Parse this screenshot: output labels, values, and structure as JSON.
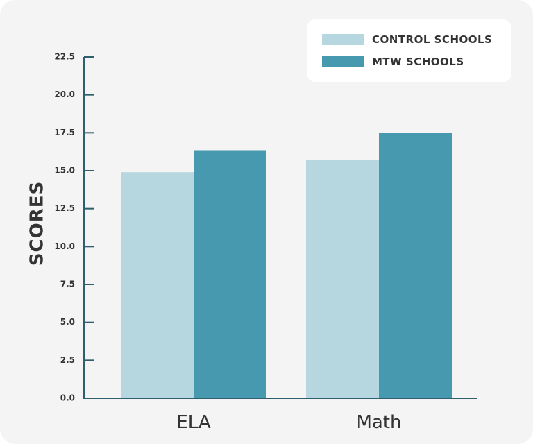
{
  "chart_data": {
    "type": "bar",
    "categories": [
      "ELA",
      "Math"
    ],
    "series": [
      {
        "name": "CONTROL SCHOOLS",
        "values": [
          14.9,
          15.7
        ],
        "color": "#b7d7e0"
      },
      {
        "name": "MTW SCHOOLS",
        "values": [
          16.35,
          17.5
        ],
        "color": "#4799b0"
      }
    ],
    "ylabel": "SCORES",
    "xlabel": "",
    "ylim": [
      0,
      22.5
    ],
    "yticks": [
      "0.0",
      "2.5",
      "5.0",
      "7.5",
      "10.0",
      "12.5",
      "15.0",
      "17.5",
      "20.0",
      "22.5"
    ],
    "legend_position": "top-right",
    "grid": false
  },
  "colors": {
    "axis": "#2f5f6e",
    "text": "#333333",
    "background": "#f4f4f4"
  }
}
